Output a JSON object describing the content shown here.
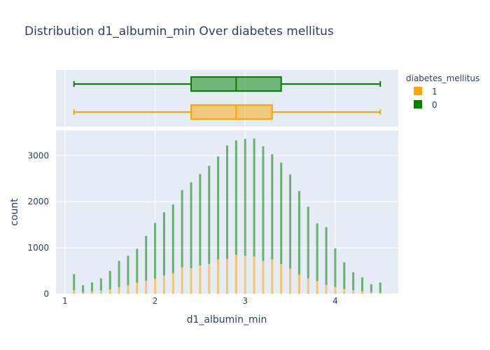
{
  "chart_data": {
    "type": "bar",
    "title": "Distribution d1_albumin_min Over diabetes mellitus",
    "xlabel": "d1_albumin_min",
    "ylabel": "count",
    "xlim": [
      0.9,
      4.7
    ],
    "ylim": [
      0,
      3550
    ],
    "xticks": [
      "1",
      "2",
      "3",
      "4"
    ],
    "yticks": [
      "0",
      "1000",
      "2000",
      "3000"
    ],
    "legend": {
      "title": "diabetes_mellitus",
      "placement": "top-right"
    },
    "x": [
      1.1,
      1.2,
      1.3,
      1.4,
      1.5,
      1.6,
      1.7,
      1.8,
      1.9,
      2.0,
      2.1,
      2.2,
      2.3,
      2.4,
      2.5,
      2.6,
      2.7,
      2.8,
      2.9,
      3.0,
      3.1,
      3.2,
      3.3,
      3.4,
      3.5,
      3.6,
      3.7,
      3.8,
      3.9,
      4.0,
      4.1,
      4.2,
      4.3,
      4.4,
      4.5
    ],
    "series": [
      {
        "name": "1",
        "color": "#ffa500",
        "values": [
          80,
          35,
          55,
          75,
          100,
          150,
          190,
          240,
          290,
          330,
          400,
          450,
          580,
          560,
          620,
          650,
          750,
          760,
          850,
          830,
          810,
          720,
          750,
          650,
          550,
          420,
          340,
          280,
          200,
          150,
          110,
          80,
          60,
          40,
          30
        ]
      },
      {
        "name": "0",
        "color": "#008000",
        "values": [
          350,
          155,
          195,
          265,
          400,
          570,
          640,
          740,
          970,
          1210,
          1370,
          1490,
          1670,
          1860,
          1980,
          2130,
          2230,
          2460,
          2480,
          2530,
          2560,
          2480,
          2280,
          2200,
          2040,
          1810,
          1550,
          1250,
          1250,
          840,
          580,
          390,
          300,
          170,
          220
        ]
      }
    ],
    "boxplots": [
      {
        "series": "0",
        "min": 1.1,
        "q1": 2.4,
        "median": 2.9,
        "q3": 3.4,
        "max": 4.5
      },
      {
        "series": "1",
        "min": 1.1,
        "q1": 2.4,
        "median": 2.9,
        "q3": 3.3,
        "max": 4.5
      }
    ]
  }
}
